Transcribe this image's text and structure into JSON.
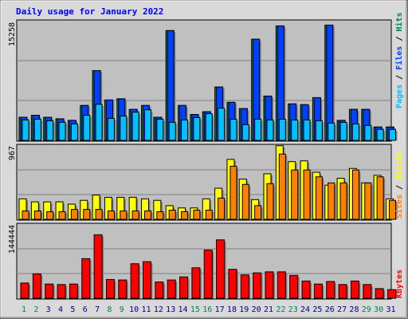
{
  "title": "Daily usage for January 2022",
  "colors": {
    "hits": "#00805c",
    "files": "#0040ff",
    "pages": "#00c0ff",
    "visits": "#ffff00",
    "sites": "#ff8000",
    "kbytes": "#ff0000",
    "panel_bg": "#c0c0c0",
    "frame_bg": "#d9d9d9",
    "weekend": "#00805c",
    "weekday": "#000080"
  },
  "chart_data": [
    {
      "type": "bar",
      "panel": "hits-files-pages",
      "y_max_label": "15258",
      "ylim": [
        0,
        15258
      ],
      "legend": [
        "Pages",
        "/",
        "Files",
        "/",
        "Hits"
      ],
      "categories": [
        "1",
        "2",
        "3",
        "4",
        "5",
        "6",
        "7",
        "8",
        "9",
        "10",
        "11",
        "12",
        "13",
        "14",
        "15",
        "16",
        "17",
        "18",
        "19",
        "20",
        "21",
        "22",
        "23",
        "24",
        "25",
        "26",
        "27",
        "28",
        "29",
        "30",
        "31"
      ],
      "weekend_days": [
        1,
        2,
        8,
        9,
        15,
        16,
        22,
        23,
        29,
        30
      ],
      "series": [
        {
          "name": "Hits",
          "values": [
            2950,
            3200,
            2950,
            2750,
            2550,
            4450,
            8900,
            5150,
            5300,
            3950,
            4450,
            2950,
            14000,
            4450,
            3300,
            3650,
            6800,
            4850,
            4050,
            12900,
            5650,
            14600,
            4650,
            4550,
            5450,
            14700,
            2550,
            3950,
            3950,
            1700,
            1700
          ]
        },
        {
          "name": "Files",
          "values": [
            2950,
            3200,
            2950,
            2750,
            2550,
            4450,
            8900,
            5150,
            5300,
            3950,
            4450,
            2950,
            14000,
            4450,
            3300,
            3650,
            6800,
            4850,
            4050,
            12900,
            5650,
            14600,
            4650,
            4550,
            5450,
            14700,
            2550,
            3950,
            3950,
            1700,
            1700
          ]
        },
        {
          "name": "Pages",
          "values": [
            2600,
            2700,
            2500,
            2300,
            2100,
            3200,
            4600,
            2800,
            3100,
            3600,
            3900,
            2700,
            2300,
            2600,
            2900,
            3400,
            4100,
            2700,
            2000,
            2700,
            2600,
            2700,
            2600,
            2600,
            2500,
            2200,
            2300,
            2100,
            1900,
            1400,
            1400
          ]
        }
      ]
    },
    {
      "type": "bar",
      "panel": "visits-sites",
      "y_max_label": "967",
      "ylim": [
        0,
        967
      ],
      "legend": [
        "Sites",
        "/",
        "Visits"
      ],
      "categories": [
        "1",
        "2",
        "3",
        "4",
        "5",
        "6",
        "7",
        "8",
        "9",
        "10",
        "11",
        "12",
        "13",
        "14",
        "15",
        "16",
        "17",
        "18",
        "19",
        "20",
        "21",
        "22",
        "23",
        "24",
        "25",
        "26",
        "27",
        "28",
        "29",
        "30",
        "31"
      ],
      "series": [
        {
          "name": "Visits",
          "values": [
            270,
            230,
            230,
            230,
            200,
            250,
            320,
            290,
            290,
            290,
            270,
            250,
            180,
            150,
            150,
            270,
            410,
            790,
            530,
            260,
            600,
            970,
            760,
            770,
            620,
            450,
            540,
            670,
            480,
            580,
            270
          ]
        },
        {
          "name": "Sites",
          "values": [
            110,
            110,
            100,
            100,
            130,
            130,
            130,
            110,
            110,
            110,
            110,
            100,
            120,
            100,
            120,
            120,
            280,
            700,
            460,
            180,
            470,
            860,
            650,
            650,
            560,
            480,
            480,
            650,
            480,
            560,
            250
          ]
        }
      ]
    },
    {
      "type": "bar",
      "panel": "kbytes",
      "y_max_label": "144444",
      "ylim": [
        0,
        144444
      ],
      "legend": [
        "KBytes"
      ],
      "categories": [
        "1",
        "2",
        "3",
        "4",
        "5",
        "6",
        "7",
        "8",
        "9",
        "10",
        "11",
        "12",
        "13",
        "14",
        "15",
        "16",
        "17",
        "18",
        "19",
        "20",
        "21",
        "22",
        "23",
        "24",
        "25",
        "26",
        "27",
        "28",
        "29",
        "30",
        "31"
      ],
      "series": [
        {
          "name": "KBytes",
          "values": [
            30000,
            48000,
            28000,
            27000,
            28000,
            78000,
            125000,
            37000,
            36000,
            68000,
            72000,
            32000,
            36000,
            42000,
            60000,
            95000,
            115000,
            57000,
            46000,
            50000,
            52000,
            52000,
            45000,
            34000,
            28000,
            33000,
            27000,
            34000,
            27000,
            19000,
            17000
          ]
        }
      ]
    }
  ]
}
